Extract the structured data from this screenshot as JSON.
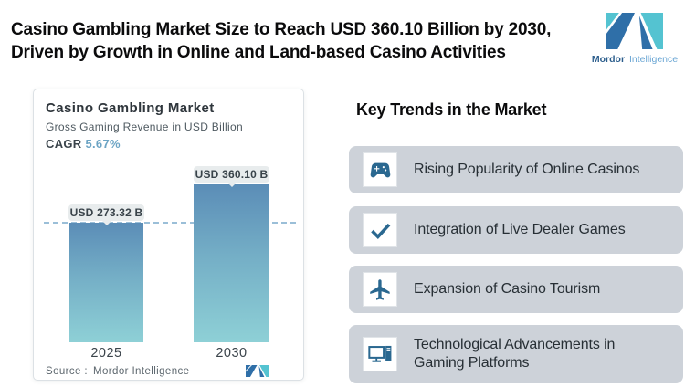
{
  "header": {
    "title_line1": "Casino Gambling Market Size to Reach USD 360.10 Billion by 2030,",
    "title_line2": "Driven by Growth in Online and Land-based Casino Activities"
  },
  "logo": {
    "brand_bold": "Mordor",
    "brand_light": "Intelligence",
    "teal": "#54c3d1",
    "blue": "#2f6fa8"
  },
  "chart_card": {
    "title": "Casino Gambling Market",
    "subtitle": "Gross Gaming Revenue in USD Billion",
    "cagr_label": "CAGR",
    "cagr_value": "5.67%",
    "source_label": "Source :",
    "source_value": "Mordor Intelligence"
  },
  "chart_data": {
    "type": "bar",
    "categories": [
      "2025",
      "2030"
    ],
    "values": [
      273.32,
      360.1
    ],
    "bar_labels": [
      "USD 273.32 B",
      "USD 360.10 B"
    ],
    "title": "Casino Gambling Market",
    "ylabel": "Gross Gaming Revenue in USD Billion",
    "cagr": "5.67%",
    "ylim": [
      0,
      400
    ],
    "grid": "off",
    "legend": "none",
    "annotations": "dashed horizontal reference line at 2025 bar top",
    "bar_gradient": [
      "#5b8db7",
      "#8ed0d6"
    ]
  },
  "trends": {
    "heading": "Key Trends in the Market",
    "card_bg": "#cdd2d9",
    "icon_color": "#2a6890",
    "items": [
      {
        "icon": "gamepad-icon",
        "label": "Rising Popularity of Online Casinos"
      },
      {
        "icon": "checkmark-icon",
        "label": "Integration of Live Dealer Games"
      },
      {
        "icon": "airplane-icon",
        "label": "Expansion of Casino Tourism"
      },
      {
        "icon": "computer-icon",
        "label": "Technological Advancements in Gaming Platforms"
      }
    ]
  }
}
